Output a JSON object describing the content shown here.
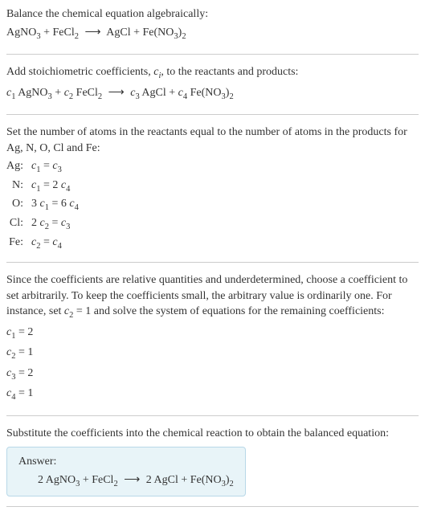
{
  "section1": {
    "title": "Balance the chemical equation algebraically:",
    "equation": "AgNO<sub>3</sub> + FeCl<sub>2</sub> <span class=\"arrow\">⟶</span> AgCl + Fe(NO<sub>3</sub>)<sub>2</sub>"
  },
  "section2": {
    "title": "Add stoichiometric coefficients, <span class=\"italic\">c<sub>i</sub></span>, to the reactants and products:",
    "equation": "<span class=\"italic\">c</span><sub>1</sub> AgNO<sub>3</sub> + <span class=\"italic\">c</span><sub>2</sub> FeCl<sub>2</sub> <span class=\"arrow\">⟶</span> <span class=\"italic\">c</span><sub>3</sub> AgCl + <span class=\"italic\">c</span><sub>4</sub> Fe(NO<sub>3</sub>)<sub>2</sub>"
  },
  "section3": {
    "title": "Set the number of atoms in the reactants equal to the number of atoms in the products for Ag, N, O, Cl and Fe:",
    "rows": [
      {
        "label": "Ag:",
        "value": "<span class=\"italic\">c</span><sub>1</sub> = <span class=\"italic\">c</span><sub>3</sub>"
      },
      {
        "label": "N:",
        "value": "<span class=\"italic\">c</span><sub>1</sub> = 2 <span class=\"italic\">c</span><sub>4</sub>"
      },
      {
        "label": "O:",
        "value": "3 <span class=\"italic\">c</span><sub>1</sub> = 6 <span class=\"italic\">c</span><sub>4</sub>"
      },
      {
        "label": "Cl:",
        "value": "2 <span class=\"italic\">c</span><sub>2</sub> = <span class=\"italic\">c</span><sub>3</sub>"
      },
      {
        "label": "Fe:",
        "value": "<span class=\"italic\">c</span><sub>2</sub> = <span class=\"italic\">c</span><sub>4</sub>"
      }
    ]
  },
  "section4": {
    "title": "Since the coefficients are relative quantities and underdetermined, choose a coefficient to set arbitrarily. To keep the coefficients small, the arbitrary value is ordinarily one. For instance, set <span class=\"italic\">c</span><sub>2</sub> = 1 and solve the system of equations for the remaining coefficients:",
    "coeffs": [
      "<span class=\"italic\">c</span><sub>1</sub> = 2",
      "<span class=\"italic\">c</span><sub>2</sub> = 1",
      "<span class=\"italic\">c</span><sub>3</sub> = 2",
      "<span class=\"italic\">c</span><sub>4</sub> = 1"
    ]
  },
  "section5": {
    "title": "Substitute the coefficients into the chemical reaction to obtain the balanced equation:",
    "answer_label": "Answer:",
    "answer_eq": "2 AgNO<sub>3</sub> + FeCl<sub>2</sub> <span class=\"arrow\">⟶</span> 2 AgCl + Fe(NO<sub>3</sub>)<sub>2</sub>"
  }
}
